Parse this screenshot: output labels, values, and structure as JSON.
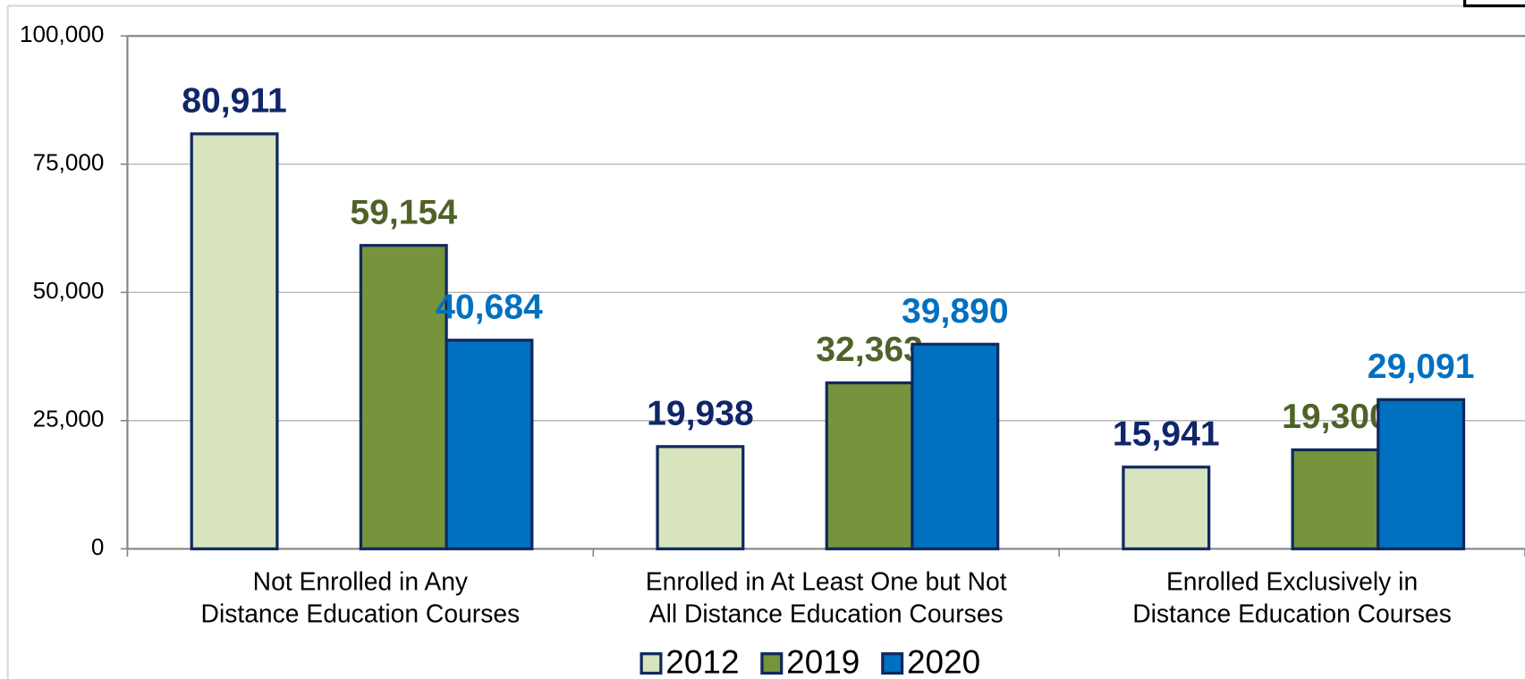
{
  "chart_data": {
    "type": "bar",
    "categories": [
      "Not Enrolled in Any Distance Education Courses",
      "Enrolled in At Least One but Not All Distance Education Courses",
      "Enrolled Exclusively in Distance Education Courses"
    ],
    "series": [
      {
        "name": "2012",
        "color": "#d7e4bd",
        "label_color": "#10266a",
        "values": [
          80911,
          19938,
          15941
        ],
        "value_labels": [
          "80,911",
          "19,938",
          "15,941"
        ]
      },
      {
        "name": "2019",
        "color": "#77933c",
        "label_color": "#4f6228",
        "values": [
          59154,
          32363,
          19300
        ],
        "value_labels": [
          "59,154",
          "32,363",
          "19,300"
        ]
      },
      {
        "name": "2020",
        "color": "#0070c0",
        "label_color": "#0070c0",
        "values": [
          40684,
          39890,
          29091
        ],
        "value_labels": [
          "40,684",
          "39,890",
          "29,091"
        ]
      }
    ],
    "ylim": [
      0,
      100000
    ],
    "yticks": [
      0,
      {
        "value": 25000,
        "label": "25,000"
      },
      {
        "value": 50000,
        "label": "50,000"
      },
      {
        "value": 75000,
        "label": "75,000"
      },
      {
        "value": 100000,
        "label": "100,000"
      }
    ],
    "grid": true,
    "legend": "bottom"
  }
}
